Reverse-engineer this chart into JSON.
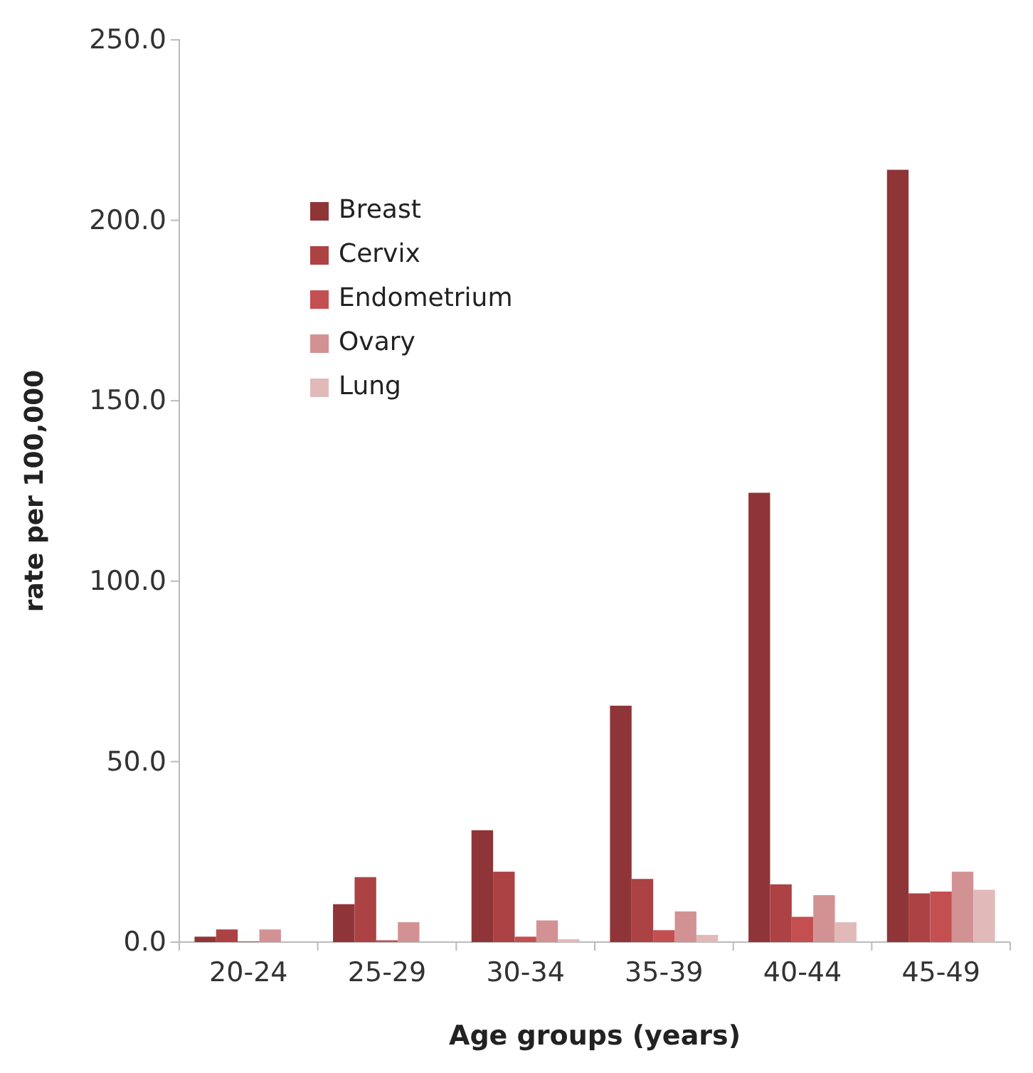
{
  "chart_data": {
    "type": "bar",
    "xlabel": "Age groups (years)",
    "ylabel": "rate per 100,000",
    "categories": [
      "20-24",
      "25-29",
      "30-34",
      "35-39",
      "40-44",
      "45-49"
    ],
    "series": [
      {
        "name": "Breast",
        "color": "#8f3537",
        "values": [
          1.5,
          10.5,
          31,
          65.5,
          124.5,
          214
        ]
      },
      {
        "name": "Cervix",
        "color": "#ac4244",
        "values": [
          3.5,
          18,
          19.5,
          17.5,
          16,
          13.5
        ]
      },
      {
        "name": "Endometrium",
        "color": "#c44f50",
        "values": [
          0.2,
          0.5,
          1.5,
          3.3,
          7,
          14
        ]
      },
      {
        "name": "Ovary",
        "color": "#d29293",
        "values": [
          3.5,
          5.5,
          6,
          8.5,
          13,
          19.5
        ]
      },
      {
        "name": "Lung",
        "color": "#e2b9b9",
        "values": [
          null,
          null,
          0.8,
          2,
          5.5,
          14.5
        ]
      }
    ],
    "ylim": [
      0,
      250
    ],
    "yticks": [
      {
        "value": 0,
        "label": "0.0"
      },
      {
        "value": 50,
        "label": "50.0"
      },
      {
        "value": 100,
        "label": "100.0"
      },
      {
        "value": 150,
        "label": "150.0"
      },
      {
        "value": 200,
        "label": "200.0"
      },
      {
        "value": 250,
        "label": "250.0"
      }
    ],
    "grid": false,
    "legend": "top left"
  }
}
